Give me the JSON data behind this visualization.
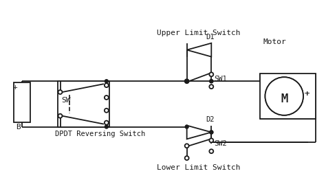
{
  "background": "#ffffff",
  "line_color": "#1a1a1a",
  "figsize": [
    4.74,
    2.78
  ],
  "dpi": 100,
  "labels": {
    "plus_bat": "+",
    "battery": "B",
    "sw": "SW",
    "dpdt": "DPDT Reversing Switch",
    "upper": "Upper Limit Switch",
    "lower": "Lower Limit Switch",
    "motor": "Motor",
    "plus_motor": "+",
    "d1": "D1",
    "d2": "D2",
    "sw1": "SW1",
    "sw2": "SW2",
    "m": "M"
  }
}
